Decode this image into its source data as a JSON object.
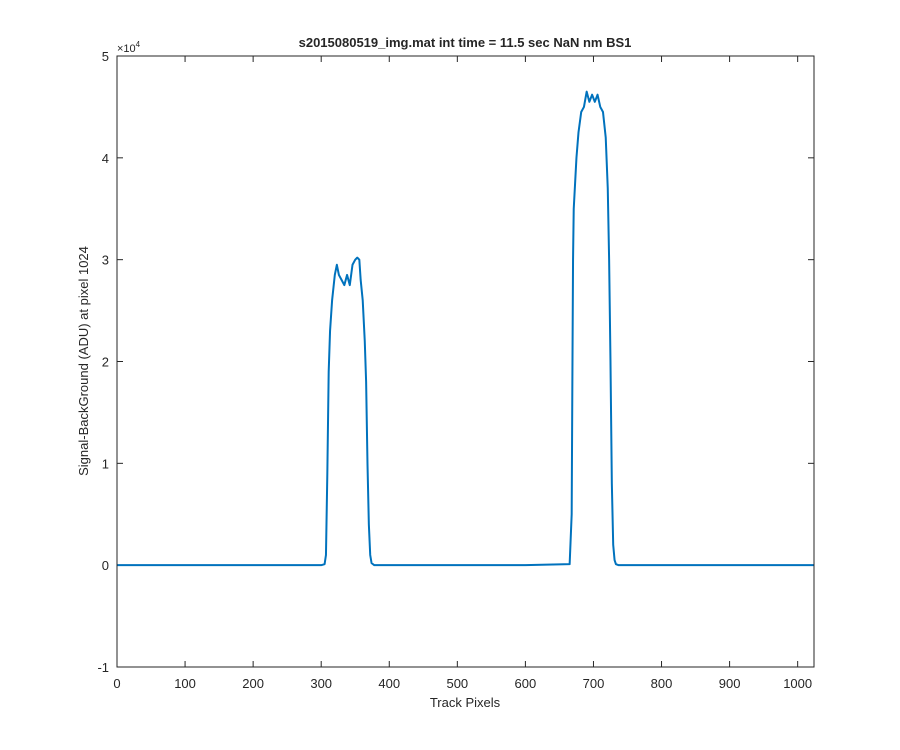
{
  "chart_data": {
    "type": "line",
    "title": "s2015080519_img.mat int time = 11.5 sec  NaN nm BS1",
    "xlabel": "Track Pixels",
    "ylabel": "Signal-BackGround (ADU) at pixel 1024",
    "y_exponent_base": "×10",
    "y_exponent_power": "4",
    "xlim": [
      0,
      1024
    ],
    "ylim": [
      -1,
      5
    ],
    "x_ticks": [
      0,
      100,
      200,
      300,
      400,
      500,
      600,
      700,
      800,
      900,
      1000
    ],
    "x_tick_labels": [
      "0",
      "100",
      "200",
      "300",
      "400",
      "500",
      "600",
      "700",
      "800",
      "900",
      "1000"
    ],
    "y_ticks": [
      -1,
      0,
      1,
      2,
      3,
      4,
      5
    ],
    "y_tick_labels": [
      "-1",
      "0",
      "1",
      "2",
      "3",
      "4",
      "5"
    ],
    "grid": false,
    "line_color": "#0072BD",
    "series": [
      {
        "x": [
          0,
          100,
          200,
          300,
          305,
          307,
          309,
          311,
          313,
          316,
          320,
          323,
          326,
          330,
          334,
          338,
          342,
          346,
          350,
          353,
          356,
          358,
          361,
          364,
          366,
          368,
          370,
          372,
          374,
          378,
          400,
          500,
          600,
          665,
          668,
          669,
          670,
          671,
          673,
          675,
          678,
          682,
          686,
          690,
          694,
          698,
          702,
          706,
          710,
          714,
          718,
          721,
          723,
          725,
          727,
          729,
          731,
          733,
          737,
          800,
          900,
          1024
        ],
        "y": [
          0,
          0,
          0,
          0,
          0.01,
          0.1,
          0.9,
          1.9,
          2.3,
          2.6,
          2.85,
          2.95,
          2.85,
          2.8,
          2.75,
          2.85,
          2.75,
          2.95,
          3.0,
          3.02,
          3.0,
          2.8,
          2.6,
          2.2,
          1.8,
          1.0,
          0.4,
          0.1,
          0.02,
          0,
          0,
          0,
          0,
          0.01,
          0.5,
          1.8,
          3.0,
          3.5,
          3.75,
          4.0,
          4.25,
          4.45,
          4.5,
          4.65,
          4.55,
          4.62,
          4.55,
          4.62,
          4.5,
          4.45,
          4.2,
          3.7,
          3.0,
          2.0,
          0.8,
          0.2,
          0.05,
          0.01,
          0,
          0,
          0,
          0
        ]
      }
    ]
  }
}
